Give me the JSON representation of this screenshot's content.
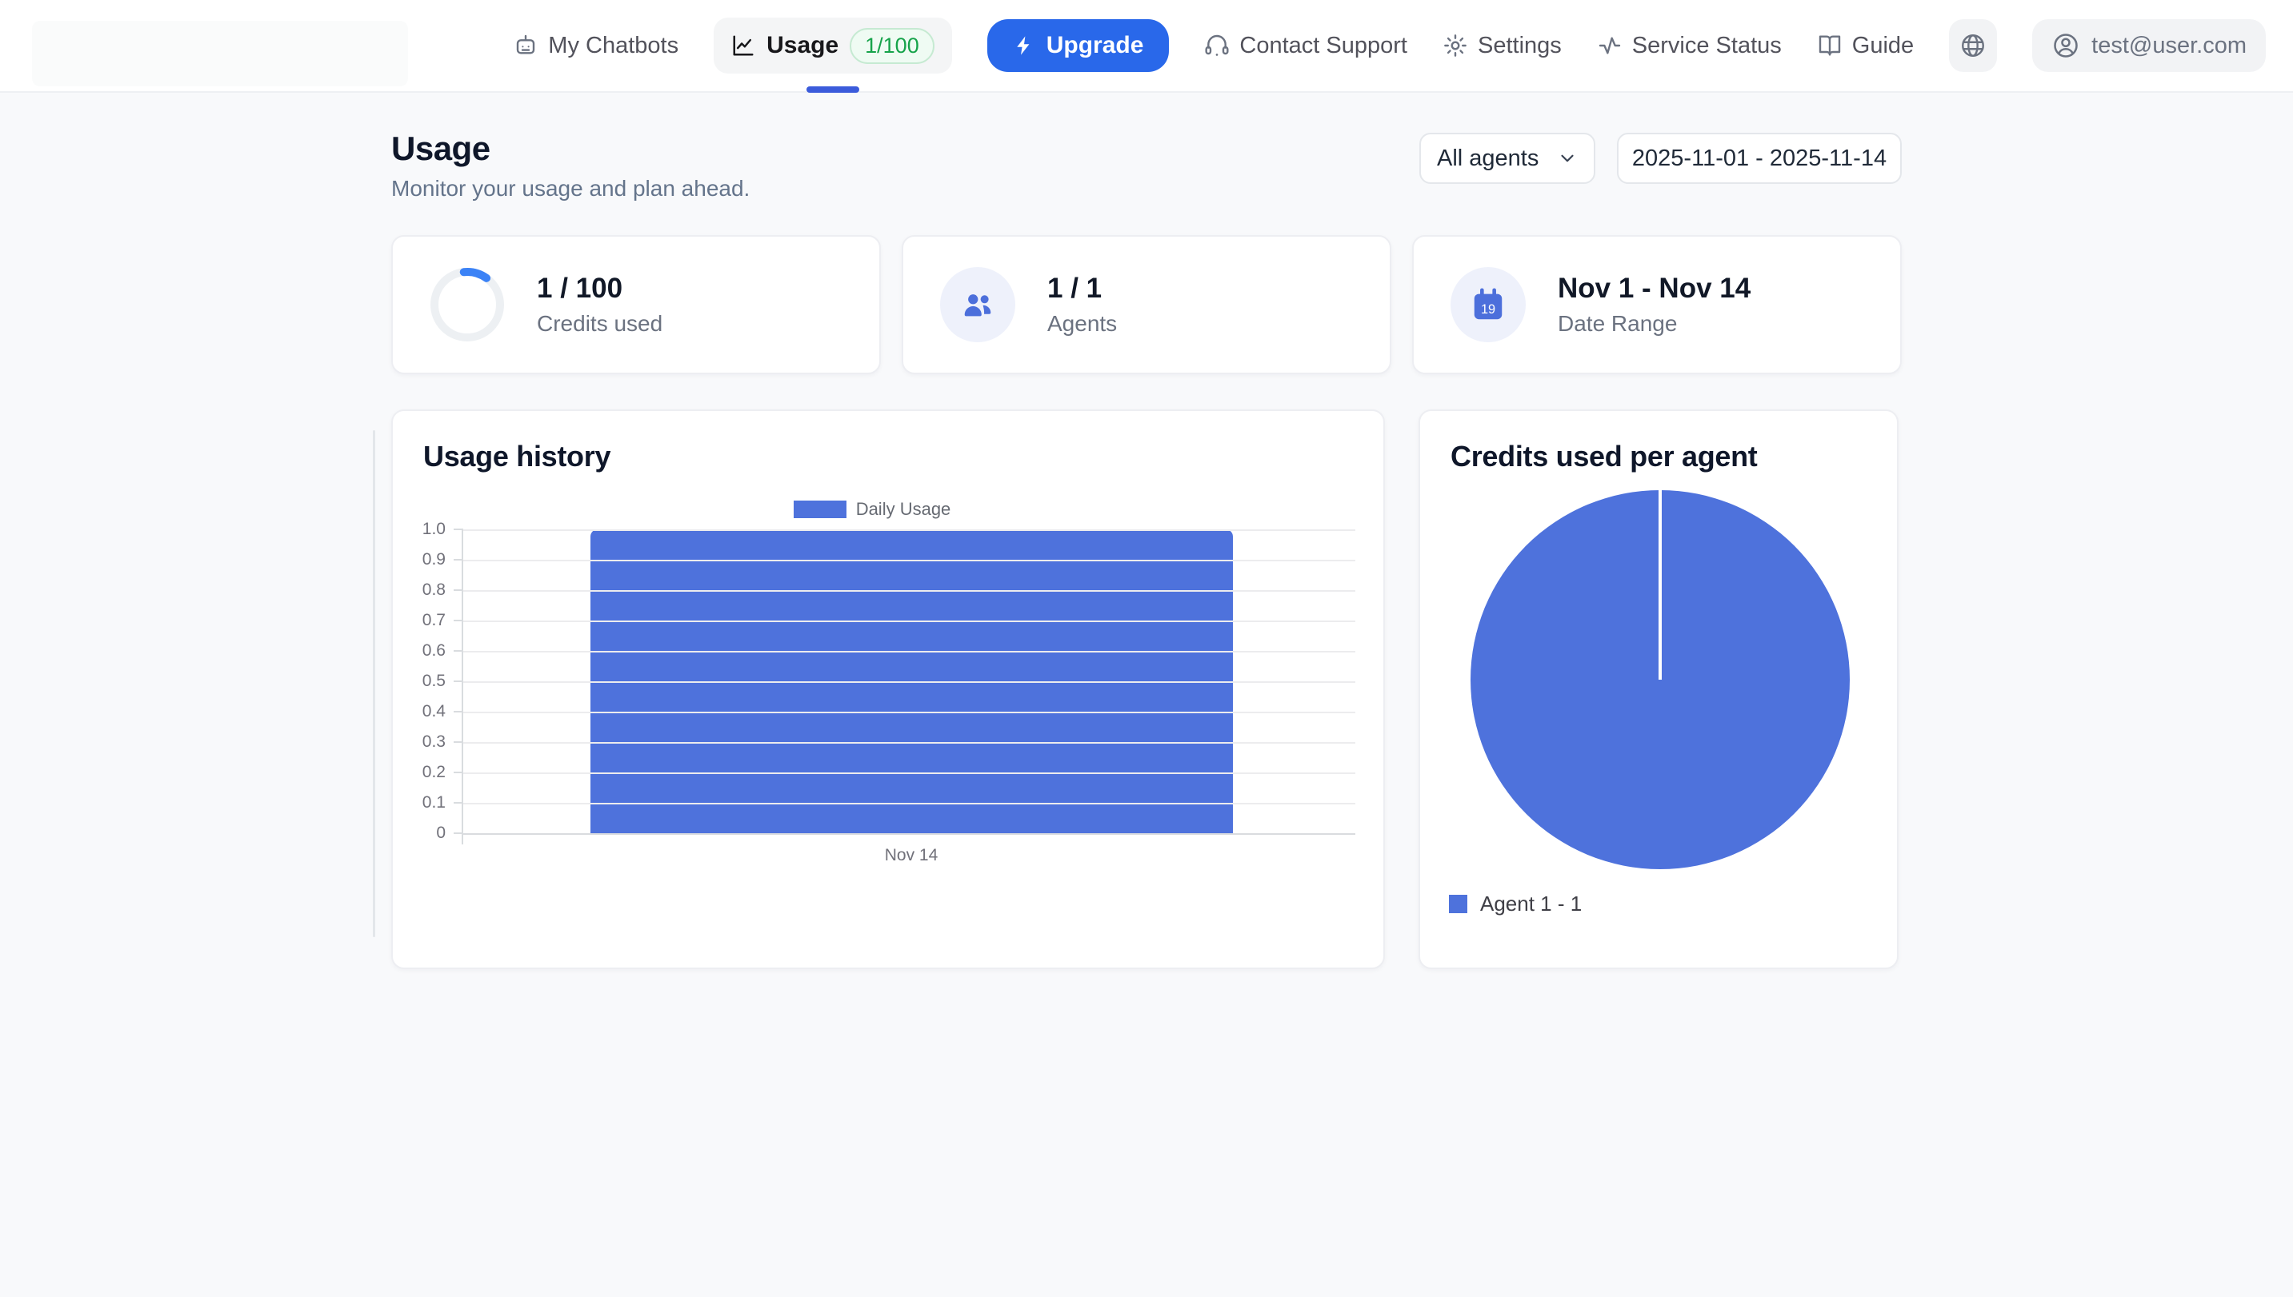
{
  "nav": {
    "my_chatbots": "My Chatbots",
    "usage_tab": {
      "label": "Usage",
      "badge": "1/100"
    },
    "upgrade_label": "Upgrade",
    "contact_support": "Contact Support",
    "settings": "Settings",
    "service_status": "Service Status",
    "guide": "Guide",
    "user_email": "test@user.com"
  },
  "header": {
    "title": "Usage",
    "subtitle": "Monitor your usage and plan ahead.",
    "agent_filter_value": "All agents",
    "date_range_value": "2025-11-01 - 2025-11-14"
  },
  "stats": [
    {
      "value": "1 / 100",
      "label": "Credits used"
    },
    {
      "value": "1 / 1",
      "label": "Agents"
    },
    {
      "value": "Nov 1 - Nov 14",
      "label": "Date Range"
    }
  ],
  "calendar_day": "19",
  "chart_data": [
    {
      "type": "bar",
      "title": "Usage history",
      "categories": [
        "Nov 14"
      ],
      "series": [
        {
          "name": "Daily Usage",
          "values": [
            1
          ]
        }
      ],
      "xlabel": "",
      "ylabel": "",
      "ylim": [
        0,
        1
      ],
      "yticks": [
        "1.0",
        "0.9",
        "0.8",
        "0.7",
        "0.6",
        "0.5",
        "0.4",
        "0.3",
        "0.2",
        "0.1",
        "0"
      ],
      "grid": true,
      "legend_position": "top",
      "bar_color": "#4e72dc"
    },
    {
      "type": "pie",
      "title": "Credits used per agent",
      "slices": [
        {
          "label": "Agent 1 - 1",
          "value": 1,
          "color": "#4e72dc"
        }
      ],
      "legend_position": "bottom-left"
    }
  ],
  "colors": {
    "accent_blue": "#4e72dc",
    "progress_arc_blue": "#3b82f6",
    "upgrade_blue": "#2968ea",
    "active_tab_underline": "#3b5bdb",
    "badge_green_text": "#16a34a",
    "badge_green_bg": "#effbf3",
    "page_bg": "#f8f9fb",
    "icon_circle_bg": "#eef1fb"
  },
  "icons": {
    "bot-icon": "robot head outline",
    "chart-line-icon": "line chart with axes",
    "bolt-icon": "filled lightning bolt",
    "headset-icon": "support headphones",
    "gear-icon": "settings cog",
    "activity-icon": "pulse line",
    "book-icon": "open book",
    "globe-icon": "globe",
    "user-circle-icon": "person in circle",
    "users-icon": "two people filled",
    "calendar-icon": "calendar with day number",
    "chevron-down-icon": "dropdown arrow",
    "progress-ring": "circular progress 1%"
  }
}
